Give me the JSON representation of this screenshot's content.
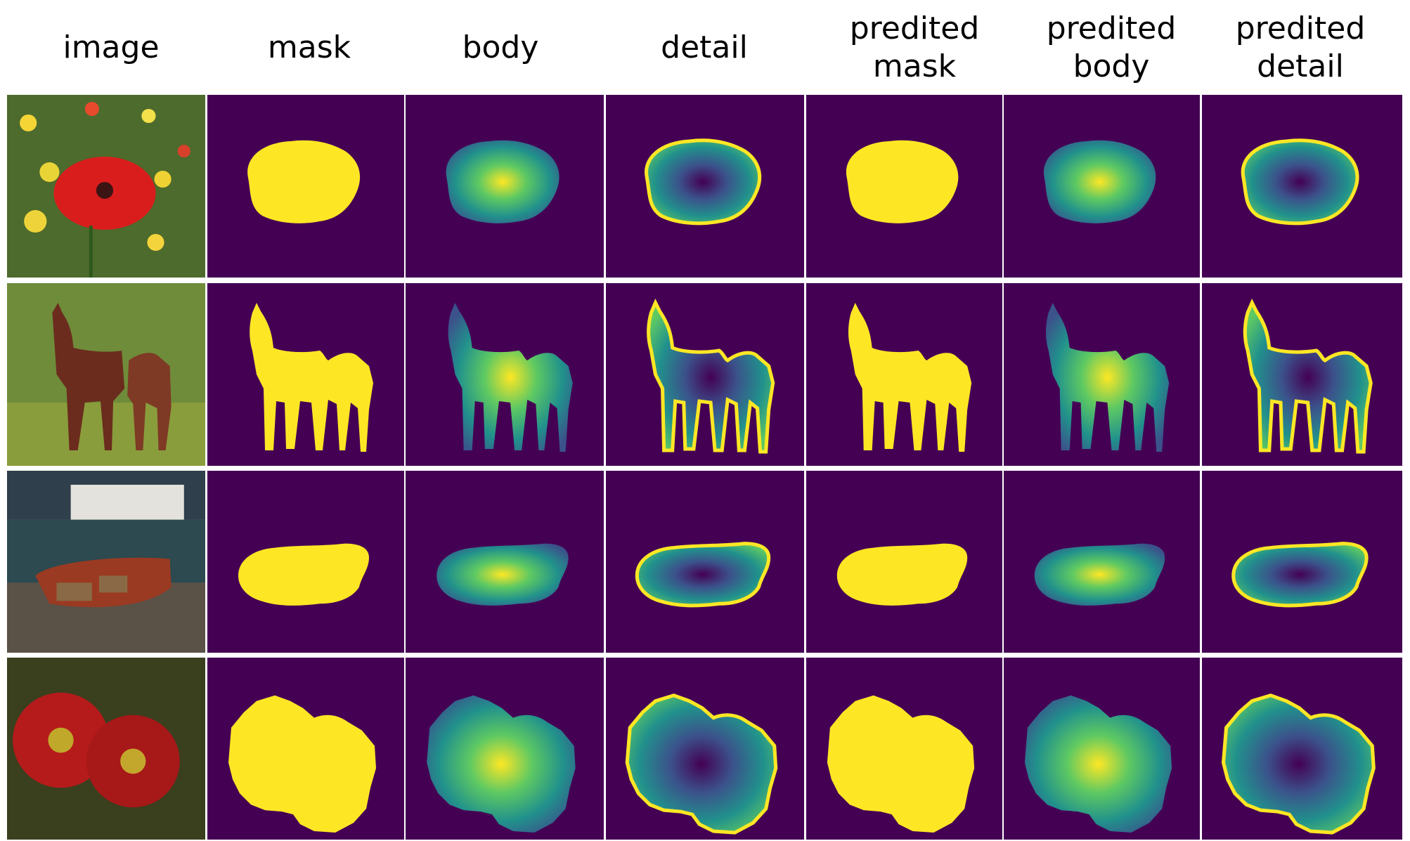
{
  "figure": {
    "column_headers": [
      "image",
      "mask",
      "body",
      "detail",
      "predited\nmask",
      "predited\nbody",
      "predited\ndetail"
    ],
    "rows": [
      {
        "subject": "red poppy among yellow flowers"
      },
      {
        "subject": "two horses on grass"
      },
      {
        "subject": "red boat on a rocky shore by the sea"
      },
      {
        "subject": "two red daisy flowers"
      }
    ]
  },
  "colors": {
    "viridis_dark": "#440154",
    "viridis_blue": "#3b528b",
    "viridis_teal": "#21918c",
    "viridis_green": "#5ec962",
    "viridis_yellow": "#fde725"
  }
}
